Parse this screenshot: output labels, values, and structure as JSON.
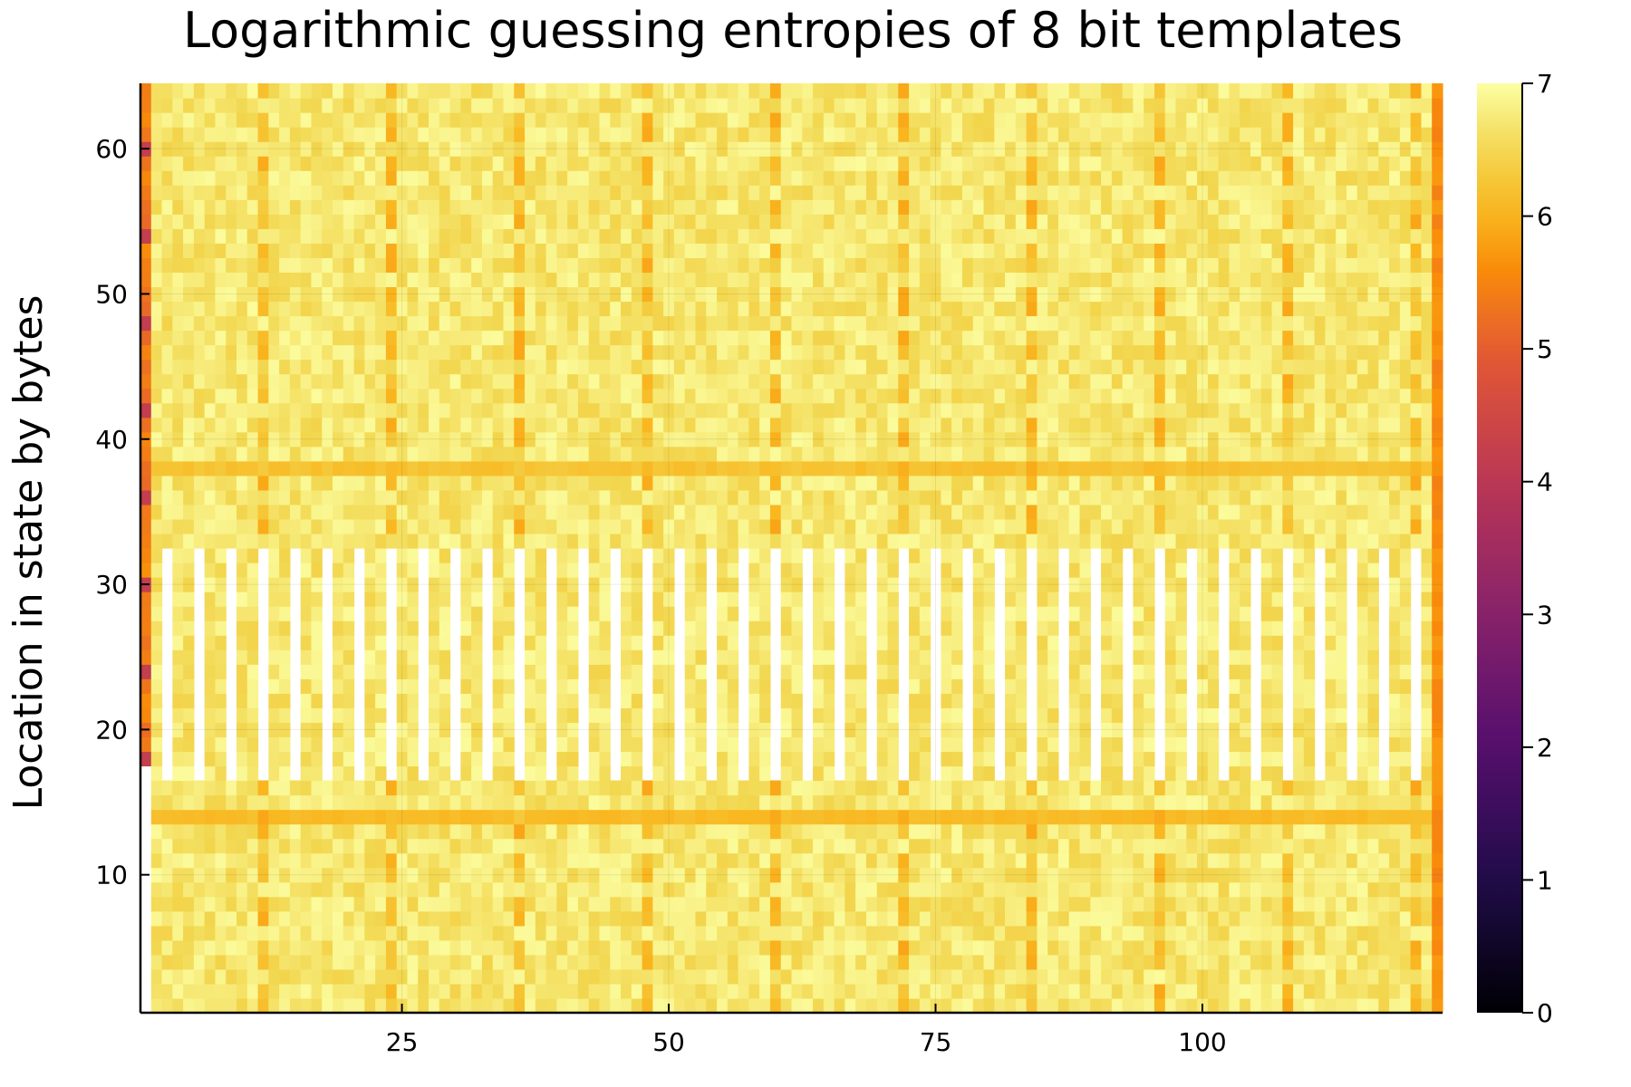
{
  "chart_data": {
    "type": "heatmap",
    "title": "Logarithmic guessing entropies of 8 bit templates",
    "xlabel": "",
    "ylabel": "Location in state by bytes",
    "xlim": [
      0.5,
      122.5
    ],
    "ylim": [
      0.5,
      64.5
    ],
    "x_ticks": [
      25,
      50,
      75,
      100
    ],
    "y_ticks": [
      10,
      20,
      30,
      40,
      50,
      60
    ],
    "colorbar": {
      "min": 0,
      "max": 7,
      "ticks": [
        0,
        1,
        2,
        3,
        4,
        5,
        6,
        7
      ],
      "colormap": "inferno"
    },
    "grid": true,
    "columns": 122,
    "rows": 64,
    "description_of_values": {
      "typical_cell_value": 6.7,
      "periodic_lower_columns_every": 12,
      "periodic_lower_value": 6.1,
      "first_column_rows_18_to_64": 5.4,
      "last_column_value": 5.6,
      "white_gaps_rows": [
        17,
        32
      ],
      "row_14_value": 6.1,
      "row_38_value": 6.2
    }
  }
}
